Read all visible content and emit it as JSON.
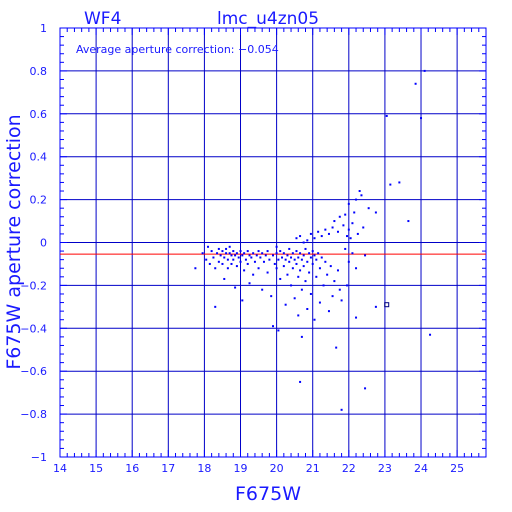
{
  "header": {
    "chip_label": "WF4",
    "title": "lmc_u4zn05"
  },
  "annotation": {
    "text": "Average aperture correction: −0.054"
  },
  "colors": {
    "axis": "#0000ff",
    "grid": "#0000c8",
    "points": "#0000ff",
    "mean_line": "#ff0000",
    "text": "#1a1aff"
  },
  "chart_data": {
    "type": "scatter",
    "title": "lmc_u4zn05",
    "xlabel": "F675W",
    "ylabel": "F675W aperture correction",
    "xlim": [
      14,
      25.8
    ],
    "ylim": [
      -1,
      1
    ],
    "xticks": [
      14,
      15,
      16,
      17,
      18,
      19,
      20,
      21,
      22,
      23,
      24,
      25
    ],
    "yticks": [
      -1,
      -0.8,
      -0.6,
      -0.4,
      -0.2,
      0,
      0.2,
      0.4,
      0.6,
      0.8,
      1
    ],
    "xtick_labels": [
      "14",
      "15",
      "16",
      "17",
      "18",
      "19",
      "20",
      "21",
      "22",
      "23",
      "24",
      "25"
    ],
    "ytick_labels": [
      "−1",
      "−0.8",
      "−0.6",
      "−0.4",
      "−0.2",
      "0",
      "0.2",
      "0.4",
      "0.6",
      "0.8",
      "1"
    ],
    "grid": true,
    "mean_line": -0.054,
    "series": [
      {
        "points": [
          [
            17.75,
            -0.12
          ],
          [
            17.95,
            -0.05
          ],
          [
            18.05,
            -0.08
          ],
          [
            18.1,
            -0.02
          ],
          [
            18.15,
            -0.1
          ],
          [
            18.2,
            -0.04
          ],
          [
            18.25,
            -0.07
          ],
          [
            18.3,
            -0.12
          ],
          [
            18.3,
            -0.3
          ],
          [
            18.35,
            -0.05
          ],
          [
            18.4,
            -0.03
          ],
          [
            18.4,
            -0.09
          ],
          [
            18.45,
            -0.06
          ],
          [
            18.5,
            -0.04
          ],
          [
            18.5,
            -0.1
          ],
          [
            18.55,
            -0.07
          ],
          [
            18.55,
            -0.17
          ],
          [
            18.6,
            -0.05
          ],
          [
            18.6,
            -0.03
          ],
          [
            18.65,
            -0.08
          ],
          [
            18.65,
            -0.12
          ],
          [
            18.7,
            -0.05
          ],
          [
            18.7,
            -0.02
          ],
          [
            18.75,
            -0.06
          ],
          [
            18.75,
            -0.1
          ],
          [
            18.8,
            -0.04
          ],
          [
            18.8,
            -0.08
          ],
          [
            18.85,
            -0.06
          ],
          [
            18.85,
            -0.21
          ],
          [
            18.9,
            -0.05
          ],
          [
            18.9,
            -0.11
          ],
          [
            18.95,
            -0.07
          ],
          [
            19.0,
            -0.04
          ],
          [
            19.0,
            -0.09
          ],
          [
            19.05,
            -0.06
          ],
          [
            19.05,
            -0.27
          ],
          [
            19.1,
            -0.05
          ],
          [
            19.1,
            -0.13
          ],
          [
            19.15,
            -0.08
          ],
          [
            19.2,
            -0.04
          ],
          [
            19.2,
            -0.1
          ],
          [
            19.25,
            -0.06
          ],
          [
            19.25,
            -0.19
          ],
          [
            19.3,
            -0.07
          ],
          [
            19.35,
            -0.05
          ],
          [
            19.35,
            -0.15
          ],
          [
            19.4,
            -0.09
          ],
          [
            19.45,
            -0.06
          ],
          [
            19.5,
            -0.04
          ],
          [
            19.5,
            -0.12
          ],
          [
            19.55,
            -0.07
          ],
          [
            19.6,
            -0.05
          ],
          [
            19.6,
            -0.22
          ],
          [
            19.65,
            -0.09
          ],
          [
            19.7,
            -0.06
          ],
          [
            19.75,
            -0.04
          ],
          [
            19.75,
            -0.14
          ],
          [
            19.8,
            -0.08
          ],
          [
            19.85,
            -0.25
          ],
          [
            19.9,
            -0.06
          ],
          [
            19.9,
            -0.39
          ],
          [
            19.95,
            -0.1
          ],
          [
            20.0,
            -0.05
          ],
          [
            20.0,
            -0.02
          ],
          [
            20.0,
            -0.12
          ],
          [
            20.05,
            -0.08
          ],
          [
            20.05,
            -0.41
          ],
          [
            20.1,
            -0.04
          ],
          [
            20.1,
            -0.17
          ],
          [
            20.15,
            -0.07
          ],
          [
            20.2,
            -0.05
          ],
          [
            20.2,
            -0.11
          ],
          [
            20.25,
            -0.08
          ],
          [
            20.25,
            -0.29
          ],
          [
            20.3,
            -0.06
          ],
          [
            20.3,
            -0.15
          ],
          [
            20.35,
            -0.03
          ],
          [
            20.35,
            -0.09
          ],
          [
            20.4,
            -0.07
          ],
          [
            20.4,
            -0.2
          ],
          [
            20.45,
            -0.05
          ],
          [
            20.45,
            -0.12
          ],
          [
            20.5,
            -0.08
          ],
          [
            20.5,
            -0.26
          ],
          [
            20.55,
            -0.04
          ],
          [
            20.55,
            -0.1
          ],
          [
            20.6,
            -0.07
          ],
          [
            20.6,
            -0.16
          ],
          [
            20.6,
            -0.34
          ],
          [
            20.65,
            -0.05
          ],
          [
            20.65,
            -0.13
          ],
          [
            20.7,
            -0.08
          ],
          [
            20.7,
            -0.22
          ],
          [
            20.7,
            -0.44
          ],
          [
            20.75,
            -0.06
          ],
          [
            20.75,
            -0.11
          ],
          [
            20.8,
            -0.03
          ],
          [
            20.8,
            -0.18
          ],
          [
            20.85,
            -0.09
          ],
          [
            20.85,
            -0.31
          ],
          [
            20.9,
            -0.05
          ],
          [
            20.9,
            -0.14
          ],
          [
            20.95,
            -0.07
          ],
          [
            20.95,
            -0.24
          ],
          [
            21.0,
            -0.04
          ],
          [
            21.0,
            -0.1
          ],
          [
            21.05,
            -0.06
          ],
          [
            21.05,
            -0.36
          ],
          [
            21.1,
            -0.08
          ],
          [
            21.1,
            -0.16
          ],
          [
            21.15,
            -0.05
          ],
          [
            21.2,
            -0.12
          ],
          [
            21.2,
            -0.28
          ],
          [
            21.25,
            -0.07
          ],
          [
            21.3,
            -0.2
          ],
          [
            21.35,
            -0.09
          ],
          [
            21.4,
            -0.15
          ],
          [
            21.45,
            -0.32
          ],
          [
            21.5,
            -0.11
          ],
          [
            21.55,
            -0.25
          ],
          [
            21.6,
            -0.18
          ],
          [
            21.65,
            -0.49
          ],
          [
            21.7,
            -0.13
          ],
          [
            21.75,
            -0.22
          ],
          [
            21.8,
            -0.27
          ],
          [
            20.55,
            0.02
          ],
          [
            20.65,
            0.03
          ],
          [
            20.75,
            0.0
          ],
          [
            20.85,
            0.01
          ],
          [
            20.95,
            0.04
          ],
          [
            21.05,
            0.02
          ],
          [
            21.15,
            0.05
          ],
          [
            21.25,
            0.03
          ],
          [
            21.35,
            0.06
          ],
          [
            21.45,
            0.04
          ],
          [
            21.55,
            0.07
          ],
          [
            21.6,
            0.1
          ],
          [
            21.7,
            0.05
          ],
          [
            21.75,
            0.12
          ],
          [
            21.85,
            0.08
          ],
          [
            21.9,
            0.13
          ],
          [
            21.95,
            0.03
          ],
          [
            22.0,
            0.06
          ],
          [
            22.0,
            0.18
          ],
          [
            22.05,
            0.02
          ],
          [
            22.1,
            0.09
          ],
          [
            22.1,
            -0.05
          ],
          [
            22.15,
            0.14
          ],
          [
            22.2,
            0.2
          ],
          [
            22.2,
            -0.12
          ],
          [
            22.25,
            0.04
          ],
          [
            22.3,
            0.24
          ],
          [
            22.35,
            0.22
          ],
          [
            22.4,
            0.07
          ],
          [
            22.45,
            -0.06
          ],
          [
            22.55,
            0.16
          ],
          [
            22.75,
            0.14
          ],
          [
            22.75,
            -0.3
          ],
          [
            23.15,
            0.27
          ],
          [
            23.4,
            0.28
          ],
          [
            23.65,
            0.1
          ],
          [
            23.05,
            0.59
          ],
          [
            23.85,
            0.74
          ],
          [
            24.0,
            0.58
          ],
          [
            24.1,
            0.8
          ],
          [
            24.25,
            -0.43
          ],
          [
            21.8,
            -0.78
          ],
          [
            22.2,
            -0.35
          ],
          [
            22.45,
            -0.68
          ],
          [
            20.65,
            -0.65
          ],
          [
            21.95,
            -0.2
          ],
          [
            22.0,
            -0.09
          ],
          [
            21.9,
            -0.03
          ]
        ]
      }
    ],
    "outlier_box": [
      23.05,
      -0.29
    ]
  }
}
